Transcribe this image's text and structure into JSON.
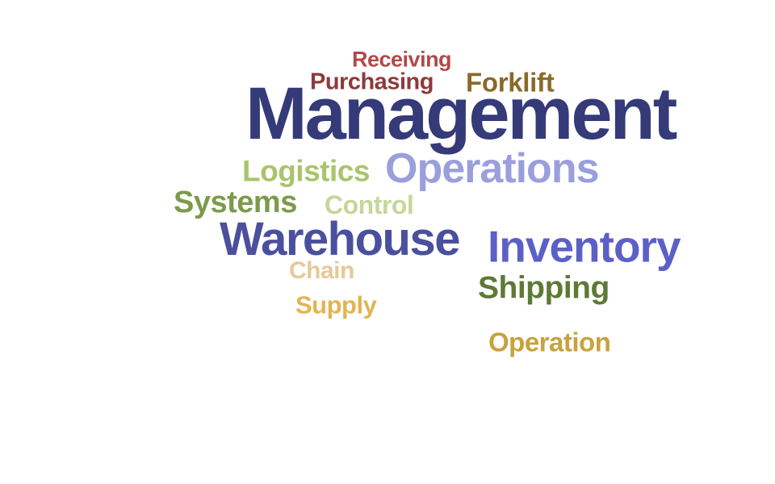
{
  "word_cloud": {
    "words": [
      {
        "text": "Receiving",
        "color": "#b04a4a"
      },
      {
        "text": "Purchasing",
        "color": "#8e3a3a"
      },
      {
        "text": "Forklift",
        "color": "#8a6a2a"
      },
      {
        "text": "Management",
        "color": "#353a78"
      },
      {
        "text": "Logistics",
        "color": "#a9c46a"
      },
      {
        "text": "Operations",
        "color": "#9a9fdc"
      },
      {
        "text": "Systems",
        "color": "#7d9a4c"
      },
      {
        "text": "Control",
        "color": "#c6d69a"
      },
      {
        "text": "Warehouse",
        "color": "#4a4f9e"
      },
      {
        "text": "Inventory",
        "color": "#5c60c6"
      },
      {
        "text": "Chain",
        "color": "#e6c99a"
      },
      {
        "text": "Shipping",
        "color": "#5d7a35"
      },
      {
        "text": "Supply",
        "color": "#e3b452"
      },
      {
        "text": "Operation",
        "color": "#c8a23e"
      }
    ]
  }
}
